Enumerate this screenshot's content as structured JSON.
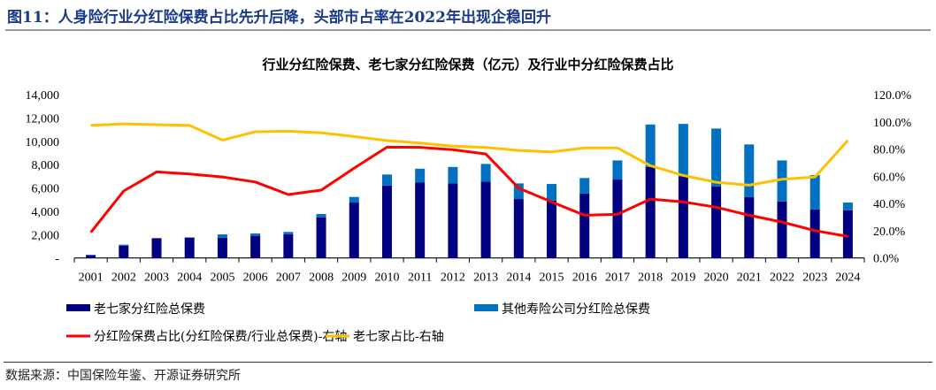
{
  "figure_title": "图11：人身险行业分红险保费占比先升后降，头部市占率在2022年出现企稳回升",
  "source": "数据来源：中国保险年鉴、开源证券研究所",
  "chart_data": {
    "type": "bar",
    "title": "行业分红险保费、老七家分红险保费（亿元）及行业中分红险保费占比",
    "categories": [
      "2001",
      "2002",
      "2003",
      "2004",
      "2005",
      "2006",
      "2007",
      "2008",
      "2009",
      "2010",
      "2011",
      "2012",
      "2013",
      "2014",
      "2015",
      "2016",
      "2017",
      "2018",
      "2019",
      "2020",
      "2021",
      "2022",
      "2023",
      "2024"
    ],
    "left_axis": {
      "ylim": [
        0,
        14000
      ],
      "ticks": [
        "-",
        "2,000",
        "4,000",
        "6,000",
        "8,000",
        "10,000",
        "12,000",
        "14,000"
      ]
    },
    "right_axis": {
      "ylim": [
        0,
        120
      ],
      "ticks": [
        "0.0%",
        "20.0%",
        "40.0%",
        "60.0%",
        "80.0%",
        "100.0%",
        "120.0%"
      ]
    },
    "grid": false,
    "legend_placement": "bottom",
    "series": [
      {
        "name": "老七家分红险总保费",
        "kind": "stacked-bar",
        "axis": "left",
        "color": "#000080",
        "values": [
          250,
          1060,
          1690,
          1740,
          1740,
          1900,
          2040,
          3490,
          4750,
          6210,
          6460,
          6390,
          6550,
          5050,
          4920,
          5530,
          6720,
          7800,
          7000,
          6140,
          5230,
          4850,
          4170,
          4090
        ]
      },
      {
        "name": "其他寿险公司分红险总保费",
        "kind": "stacked-bar",
        "axis": "left",
        "color": "#0070C0",
        "values": [
          10,
          80,
          10,
          30,
          280,
          200,
          190,
          280,
          480,
          940,
          1190,
          1410,
          1510,
          1340,
          1420,
          1320,
          1640,
          3640,
          4490,
          4950,
          4500,
          3510,
          2930,
          660
        ]
      },
      {
        "name": "分红险保费占比(分红险保费/行业总保费)-右轴",
        "kind": "line",
        "axis": "right",
        "color": "#FF0000",
        "values": [
          18.8,
          49.2,
          63.2,
          61.7,
          59.5,
          55.8,
          46.6,
          49.8,
          66.0,
          81.4,
          81.3,
          79.5,
          76.4,
          51.3,
          41.2,
          31.4,
          32.0,
          43.3,
          41.2,
          37.3,
          31.4,
          26.4,
          20.1,
          15.8
        ]
      },
      {
        "name": "老七家占比-右轴",
        "kind": "line",
        "axis": "right",
        "color": "#FFC000",
        "values": [
          97.4,
          98.5,
          97.9,
          97.4,
          86.6,
          92.7,
          93.1,
          92.0,
          89.2,
          86.2,
          84.4,
          82.1,
          81.2,
          79.0,
          77.9,
          80.8,
          80.8,
          67.8,
          60.6,
          55.6,
          53.5,
          57.8,
          59.5,
          86.4
        ]
      }
    ]
  }
}
